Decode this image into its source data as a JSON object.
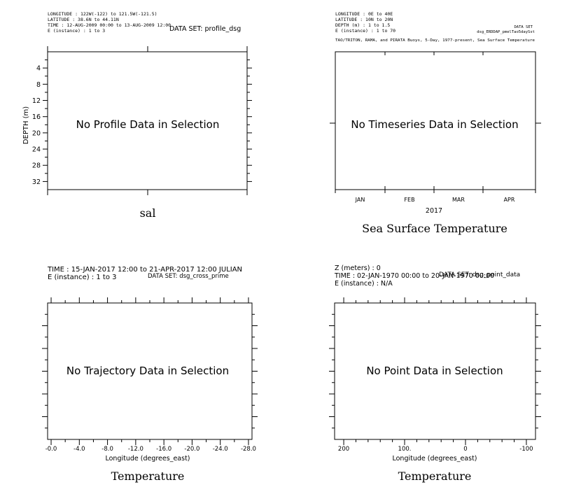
{
  "colors": {
    "ink": "#000000",
    "background": "#ffffff"
  },
  "chart_data": [
    {
      "id": "profile",
      "type": "line",
      "title": "sal",
      "message": "No Profile Data in Selection",
      "header": [
        "LONGITUDE : 122W(-122) to 121.5W(-121.5)",
        "LATITUDE : 38.6N to 44.11N",
        "TIME : 12-AUG-2009 00:00 to 13-AUG-2009 12:00",
        "E (instance) : 1 to 3"
      ],
      "dataset": "DATA SET: profile_dsg",
      "xlabel": "",
      "ylabel": "DEPTH (m)",
      "ylim": [
        34,
        0
      ],
      "yticks": [
        4,
        8,
        12,
        16,
        20,
        24,
        28,
        32
      ],
      "ytick_labels": [
        "4",
        "8",
        "12",
        "16",
        "20",
        "24",
        "28",
        "32"
      ],
      "grid": false
    },
    {
      "id": "timeseries",
      "type": "line",
      "title": "Sea Surface Temperature",
      "message": "No Timeseries Data in Selection",
      "header": [
        "LONGITUDE : 0E to 40E",
        "LATITUDE : 10N to 20N",
        "DEPTH (m) : 1 to 1.5",
        "E (instance) : 1 to 70"
      ],
      "dataset_label": "DATA SET",
      "dataset": "dsg_ERDDAP_pmelTao5daySst",
      "subtitle": "TAO/TRITON, RAMA, and PIRATA Buoys, 5-Day, 1977-present, Sea Surface Temperature",
      "xlabel": "2017",
      "ylabel": "",
      "x_categories": [
        "JAN",
        "FEB",
        "MAR",
        "APR"
      ],
      "grid": false
    },
    {
      "id": "trajectory",
      "type": "line",
      "title": "Temperature",
      "message": "No Trajectory Data in Selection",
      "header": [
        "TIME : 15-JAN-2017 12:00 to 21-APR-2017 12:00 JULIAN",
        "E (instance) : 1 to 3"
      ],
      "dataset": "DATA SET: dsg_cross_prime",
      "xlabel": "Longitude (degrees_east)",
      "ylabel": "",
      "xlim": [
        0.5,
        -28.5
      ],
      "xticks": [
        0,
        -4,
        -8,
        -12,
        -16,
        -20,
        -24,
        -28
      ],
      "xtick_labels": [
        "-0.0",
        "-4.0",
        "-8.0",
        "-12.0",
        "-16.0",
        "-20.0",
        "-24.0",
        "-28.0"
      ],
      "grid": false
    },
    {
      "id": "point",
      "type": "scatter",
      "title": "Temperature",
      "message": "No Point Data in Selection",
      "header": [
        "Z (meters) : 0",
        "TIME : 02-JAN-1970 00:00 to 20-JAN-1970 00:00",
        "E (instance) :  N/A"
      ],
      "dataset": "DATA SET: dsg_point_data",
      "xlabel": "Longitude (degrees_east)",
      "ylabel": "",
      "xlim": [
        215,
        -115
      ],
      "xticks": [
        200,
        100,
        0,
        -100
      ],
      "xtick_labels": [
        "200",
        "100.",
        "0",
        "-100"
      ],
      "grid": false
    }
  ]
}
